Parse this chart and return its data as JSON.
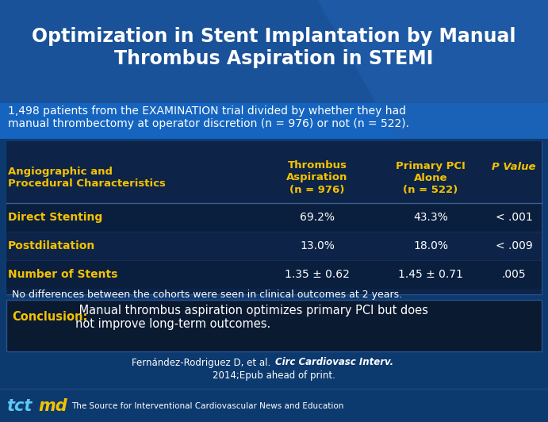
{
  "title": "Optimization in Stent Implantation by Manual\nThrombus Aspiration in STEMI",
  "subtitle": "1,498 patients from the EXAMINATION trial divided by whether they had\nmanual thrombectomy at operator discretion (n = 976) or not (n = 522).",
  "col_header_left": "Angiographic and\nProcedural Characteristics",
  "col_header_mid": "Thrombus\nAspiration\n(n = 976)",
  "col_header_right": "Primary PCI\nAlone\n(n = 522)",
  "col_header_pval": "P Value",
  "rows": [
    {
      "label": "Direct Stenting",
      "v1": "69.2%",
      "v2": "43.3%",
      "pval": "< .001"
    },
    {
      "label": "Postdilatation",
      "v1": "13.0%",
      "v2": "18.0%",
      "pval": "< .009"
    },
    {
      "label": "Number of Stents",
      "v1": "1.35 ± 0.62",
      "v2": "1.45 ± 0.71",
      "pval": ".005"
    }
  ],
  "no_diff_note": "No differences between the cohorts were seen in clinical outcomes at 2 years.",
  "conclusion_label": "Conclusion:",
  "conclusion_text": " Manual thrombus aspiration optimizes primary PCI but does\nnot improve long-term outcomes.",
  "citation_line1": "Fernández-Rodriguez D, et al. ",
  "citation_journal": "Circ Cardiovasc Interv.",
  "citation_line2": "2014;Epub ahead of print.",
  "footer_tagline": "The Source for Interventional Cardiovascular News and Education",
  "bg_dark_blue": "#0d3a6e",
  "bg_title_blue": "#1a5299",
  "bg_table": "#0a1f3d",
  "bg_row_alt": "#0d2448",
  "bg_conclusion": "#0a1a30",
  "color_yellow": "#f5c200",
  "color_white": "#ffffff",
  "color_tct_blue": "#5bc8f5",
  "title_fontsize": 17,
  "subtitle_fontsize": 10,
  "header_fontsize": 9.5,
  "row_fontsize": 10,
  "note_fontsize": 9,
  "conclusion_fontsize": 10.5,
  "citation_fontsize": 8.5,
  "footer_fontsize": 7.5
}
